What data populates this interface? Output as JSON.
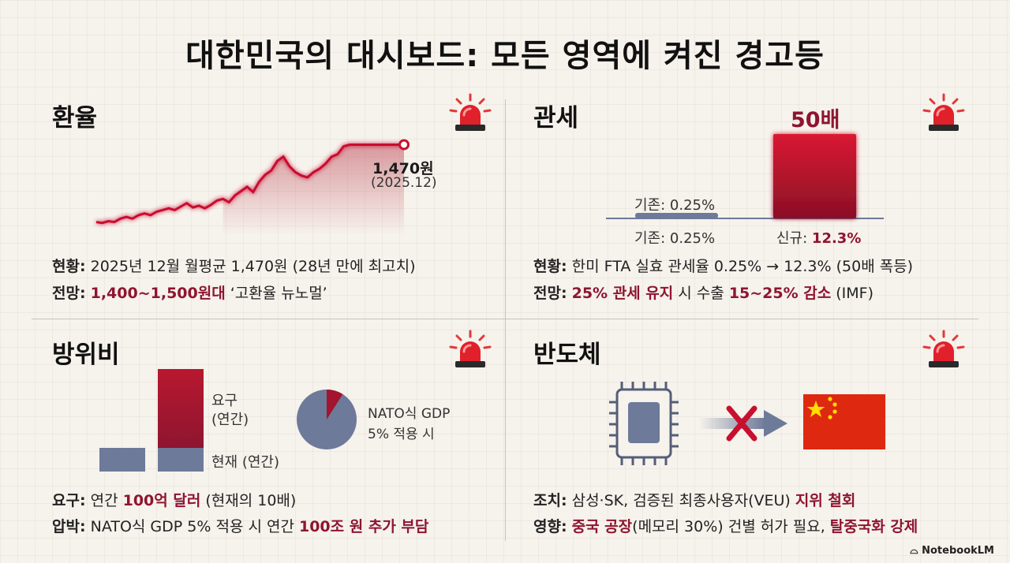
{
  "title": "대한민국의 대시보드: 모든 영역에 켜진 경고등",
  "exchange": {
    "title": "환율",
    "chart_data": {
      "type": "line",
      "title": "",
      "xlabel": "",
      "ylabel": "",
      "values": [
        1290,
        1288,
        1292,
        1290,
        1298,
        1302,
        1298,
        1306,
        1310,
        1306,
        1314,
        1318,
        1322,
        1318,
        1326,
        1334,
        1324,
        1328,
        1322,
        1330,
        1340,
        1344,
        1336,
        1352,
        1362,
        1372,
        1360,
        1384,
        1400,
        1410,
        1432,
        1442,
        1420,
        1406,
        1398,
        1394,
        1406,
        1414,
        1426,
        1442,
        1448,
        1466,
        1470,
        1470,
        1470,
        1470,
        1470,
        1470,
        1470,
        1470,
        1470,
        1470
      ],
      "end_label": "1,470원",
      "end_date": "(2025.12)",
      "ylim": [
        1260,
        1480
      ]
    },
    "status_label": "현황:",
    "status_text": " 2025년 12월 월평균 1,470원 (28년 만에 최고치)",
    "outlook_label": "전망:",
    "outlook_highlight": "1,400~1,500원대",
    "outlook_text": " ‘고환율 뉴노멀’"
  },
  "tariff": {
    "title": "관세",
    "chart_data": {
      "type": "bar",
      "categories": [
        "기존: 0.25%",
        "신규: 12.3%"
      ],
      "values": [
        0.25,
        12.3
      ],
      "new_bar_label": "50배",
      "old_bar_top_label": "기존: 0.25%",
      "ylim": [
        0,
        12.3
      ]
    },
    "new_label_prefix": "신규:",
    "new_label_value": "12.3%",
    "status_label": "현황:",
    "status_text": " 한미 FTA 실효 관세율 0.25% → 12.3% (50배 폭등)",
    "outlook_label": "전망:",
    "outlook_h1": "25% 관세 유지",
    "outlook_mid": " 시 수출 ",
    "outlook_h2": "15~25% 감소",
    "outlook_tail": " (IMF)"
  },
  "defense": {
    "title": "방위비",
    "chart_data": {
      "type": "bar",
      "categories": [
        "현재 (연간)",
        "요구 (연간)"
      ],
      "values": [
        1,
        10
      ],
      "label_demand_1": "요구",
      "label_demand_2": "(연간)",
      "label_current": "현재 (연간)",
      "pie": {
        "type": "pie",
        "slice_fraction": 0.09,
        "label_1": "NATO식 GDP",
        "label_2": "5% 적용 시"
      }
    },
    "demand_label": "요구:",
    "demand_pre": " 연간 ",
    "demand_highlight": "100억 달러",
    "demand_tail": " (현재의 10배)",
    "pressure_label": "압박:",
    "pressure_pre": " NATO식 GDP 5% 적용 시 연간 ",
    "pressure_highlight": "100조 원 추가 부담"
  },
  "semiconductor": {
    "title": "반도체",
    "action_label": "조치:",
    "action_text": " 삼성·SK, 검증된 최종사용자(VEU) ",
    "action_highlight": "지위 철회",
    "impact_label": "영향:",
    "impact_h1": "중국 공장",
    "impact_mid": "(메모리 30%) 건별 허가 필요, ",
    "impact_h2": "탈중국화 강제"
  },
  "brand": "NotebookLM",
  "colors": {
    "accent": "#8e1530",
    "bar_red": "#c8102e",
    "slate": "#6d7a99",
    "flag_red": "#de2910",
    "flag_star": "#ffde00"
  }
}
